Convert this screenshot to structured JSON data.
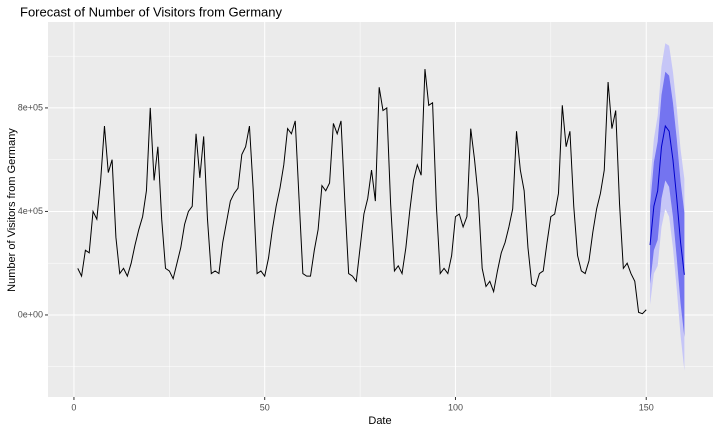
{
  "chart_data": {
    "type": "forecast_line",
    "title": "Forecast of Number of Visitors from Germany",
    "x_label": "Date",
    "y_label": "Number of Visitors from Germany",
    "xlim": [
      -6.8,
      167.5
    ],
    "ylim": [
      -317000,
      1132000
    ],
    "xticks": [
      0,
      50,
      100,
      150
    ],
    "x_minor_ticks": [
      25,
      75,
      125
    ],
    "yticks": [
      {
        "value": 0,
        "label": "0e+00"
      },
      {
        "value": 400000,
        "label": "4e+05"
      },
      {
        "value": 800000,
        "label": "8e+05"
      }
    ],
    "y_minor_ticks": [
      -200000,
      200000,
      600000,
      1000000
    ],
    "grid": true,
    "history": {
      "color": "#000000",
      "x": [
        1,
        2,
        3,
        4,
        5,
        6,
        7,
        8,
        9,
        10,
        11,
        12,
        13,
        14,
        15,
        16,
        17,
        18,
        19,
        20,
        21,
        22,
        23,
        24,
        25,
        26,
        27,
        28,
        29,
        30,
        31,
        32,
        33,
        34,
        35,
        36,
        37,
        38,
        39,
        40,
        41,
        42,
        43,
        44,
        45,
        46,
        47,
        48,
        49,
        50,
        51,
        52,
        53,
        54,
        55,
        56,
        57,
        58,
        59,
        60,
        61,
        62,
        63,
        64,
        65,
        66,
        67,
        68,
        69,
        70,
        71,
        72,
        73,
        74,
        75,
        76,
        77,
        78,
        79,
        80,
        81,
        82,
        83,
        84,
        85,
        86,
        87,
        88,
        89,
        90,
        91,
        92,
        93,
        94,
        95,
        96,
        97,
        98,
        99,
        100,
        101,
        102,
        103,
        104,
        105,
        106,
        107,
        108,
        109,
        110,
        111,
        112,
        113,
        114,
        115,
        116,
        117,
        118,
        119,
        120,
        121,
        122,
        123,
        124,
        125,
        126,
        127,
        128,
        129,
        130,
        131,
        132,
        133,
        134,
        135,
        136,
        137,
        138,
        139,
        140,
        141,
        142,
        143,
        144,
        145,
        146,
        147,
        148,
        149,
        150
      ],
      "values": [
        180000,
        150000,
        250000,
        240000,
        400000,
        370000,
        520000,
        730000,
        550000,
        600000,
        300000,
        160000,
        180000,
        150000,
        200000,
        270000,
        330000,
        380000,
        480000,
        800000,
        520000,
        650000,
        370000,
        180000,
        170000,
        140000,
        200000,
        260000,
        350000,
        400000,
        420000,
        700000,
        530000,
        690000,
        370000,
        160000,
        170000,
        160000,
        280000,
        360000,
        440000,
        470000,
        490000,
        620000,
        650000,
        730000,
        480000,
        160000,
        170000,
        150000,
        220000,
        330000,
        420000,
        490000,
        580000,
        720000,
        700000,
        750000,
        450000,
        160000,
        150000,
        150000,
        250000,
        330000,
        500000,
        480000,
        510000,
        740000,
        700000,
        750000,
        440000,
        160000,
        150000,
        130000,
        260000,
        390000,
        450000,
        560000,
        440000,
        880000,
        790000,
        800000,
        430000,
        170000,
        190000,
        160000,
        260000,
        400000,
        520000,
        580000,
        540000,
        950000,
        810000,
        820000,
        420000,
        160000,
        180000,
        160000,
        230000,
        380000,
        390000,
        340000,
        380000,
        720000,
        600000,
        450000,
        180000,
        110000,
        130000,
        90000,
        170000,
        240000,
        280000,
        340000,
        410000,
        710000,
        560000,
        480000,
        260000,
        120000,
        110000,
        160000,
        170000,
        280000,
        380000,
        390000,
        470000,
        810000,
        650000,
        710000,
        420000,
        230000,
        170000,
        160000,
        210000,
        320000,
        410000,
        470000,
        560000,
        900000,
        720000,
        790000,
        430000,
        180000,
        200000,
        160000,
        130000,
        10000,
        5000,
        20000
      ]
    },
    "forecast": {
      "line_color": "#0000cc",
      "band80_color": "#7474f0",
      "band95_color": "#c6c6f7",
      "x": [
        151,
        152,
        153,
        154,
        155,
        156,
        157,
        158,
        159,
        160
      ],
      "mean": [
        270000,
        420000,
        480000,
        650000,
        730000,
        710000,
        600000,
        450000,
        280000,
        155000
      ],
      "lower80": [
        120000,
        250000,
        290000,
        450000,
        520000,
        495000,
        380000,
        220000,
        45000,
        -85000
      ],
      "upper80": [
        420000,
        590000,
        670000,
        850000,
        940000,
        925000,
        820000,
        680000,
        515000,
        395000
      ],
      "lower95": [
        40000,
        160000,
        190000,
        340000,
        410000,
        380000,
        260000,
        100000,
        -80000,
        -215000
      ],
      "upper95": [
        500000,
        680000,
        770000,
        960000,
        1050000,
        1040000,
        940000,
        800000,
        640000,
        525000
      ]
    }
  }
}
